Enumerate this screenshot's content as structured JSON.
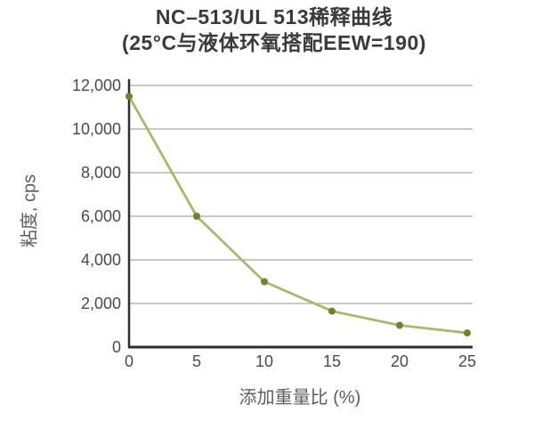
{
  "page": {
    "background": "#ffffff"
  },
  "chart_data": {
    "type": "line",
    "title": "NC–513/UL 513稀释曲线 (25°C与液体环氧搭配EEW=190)",
    "title_line1": "NC–513/UL 513稀释曲线",
    "title_line2": "(25°C与液体环氧搭配EEW=190)",
    "xlabel": "添加重量比 (%)",
    "ylabel": "粘度, cps",
    "x": [
      0,
      5,
      10,
      15,
      20,
      25
    ],
    "y": [
      11500,
      6000,
      3000,
      1650,
      1000,
      650
    ],
    "x_ticks": [
      0,
      5,
      10,
      15,
      20,
      25
    ],
    "x_tick_labels": [
      "0",
      "5",
      "10",
      "15",
      "20",
      "25"
    ],
    "y_ticks": [
      0,
      2000,
      4000,
      6000,
      8000,
      10000,
      12000
    ],
    "y_tick_labels": [
      "0",
      "2,000",
      "4,000",
      "6,000",
      "8,000",
      "10,000",
      "12,000"
    ],
    "xlim": [
      0,
      25
    ],
    "ylim": [
      0,
      12000
    ],
    "grid": "horizontal",
    "legend": "none",
    "marker": "circle",
    "line_color": "#a9b86b",
    "marker_color": "#6e8135",
    "grid_color": "#919191",
    "axis_color": "#2e2e2e"
  }
}
